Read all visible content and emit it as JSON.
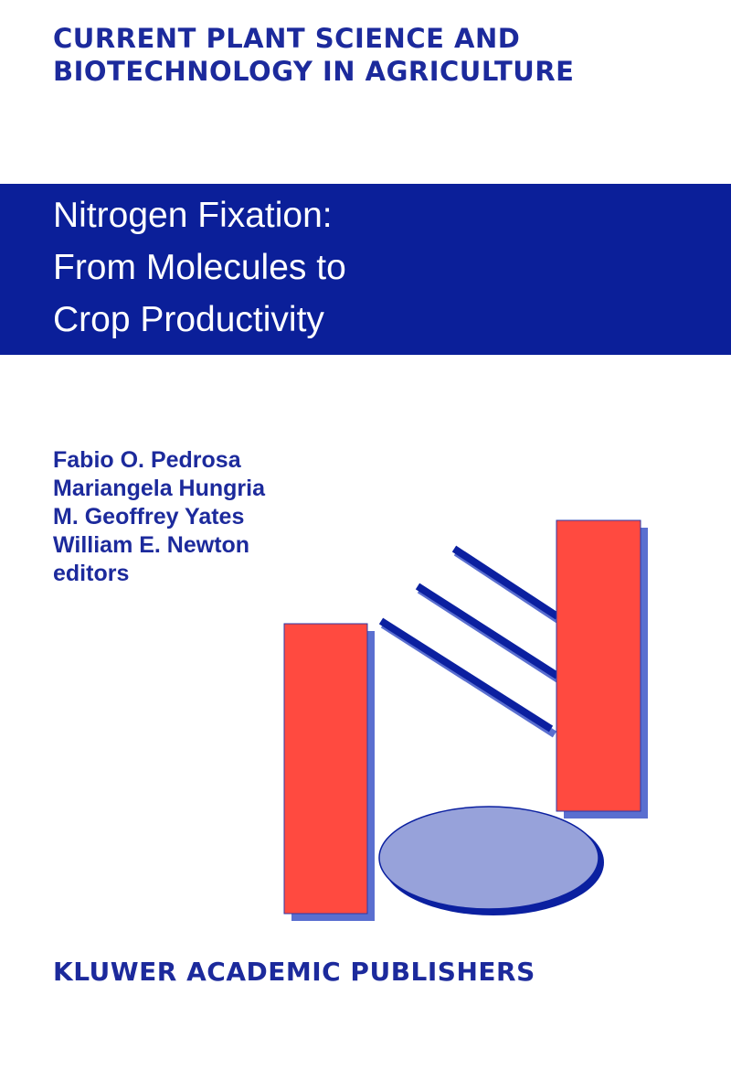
{
  "cover": {
    "series_title": [
      "CURRENT PLANT SCIENCE AND",
      "BIOTECHNOLOGY IN AGRICULTURE"
    ],
    "title": [
      "Nitrogen Fixation:",
      "From Molecules to",
      "Crop Productivity"
    ],
    "editors": [
      "Fabio O. Pedrosa",
      "Mariangela Hungria",
      "M. Geoffrey Yates",
      "William E. Newton"
    ],
    "editors_label": "editors",
    "publisher": "KLUWER ACADEMIC PUBLISHERS"
  },
  "colors": {
    "band": "#0b1f99",
    "text_blue": "#1c2a9c",
    "red_bar": "#ff4a40",
    "shadow": "#5a6fd0",
    "ellipse": "#97a2da",
    "line": "#0b20a0"
  }
}
